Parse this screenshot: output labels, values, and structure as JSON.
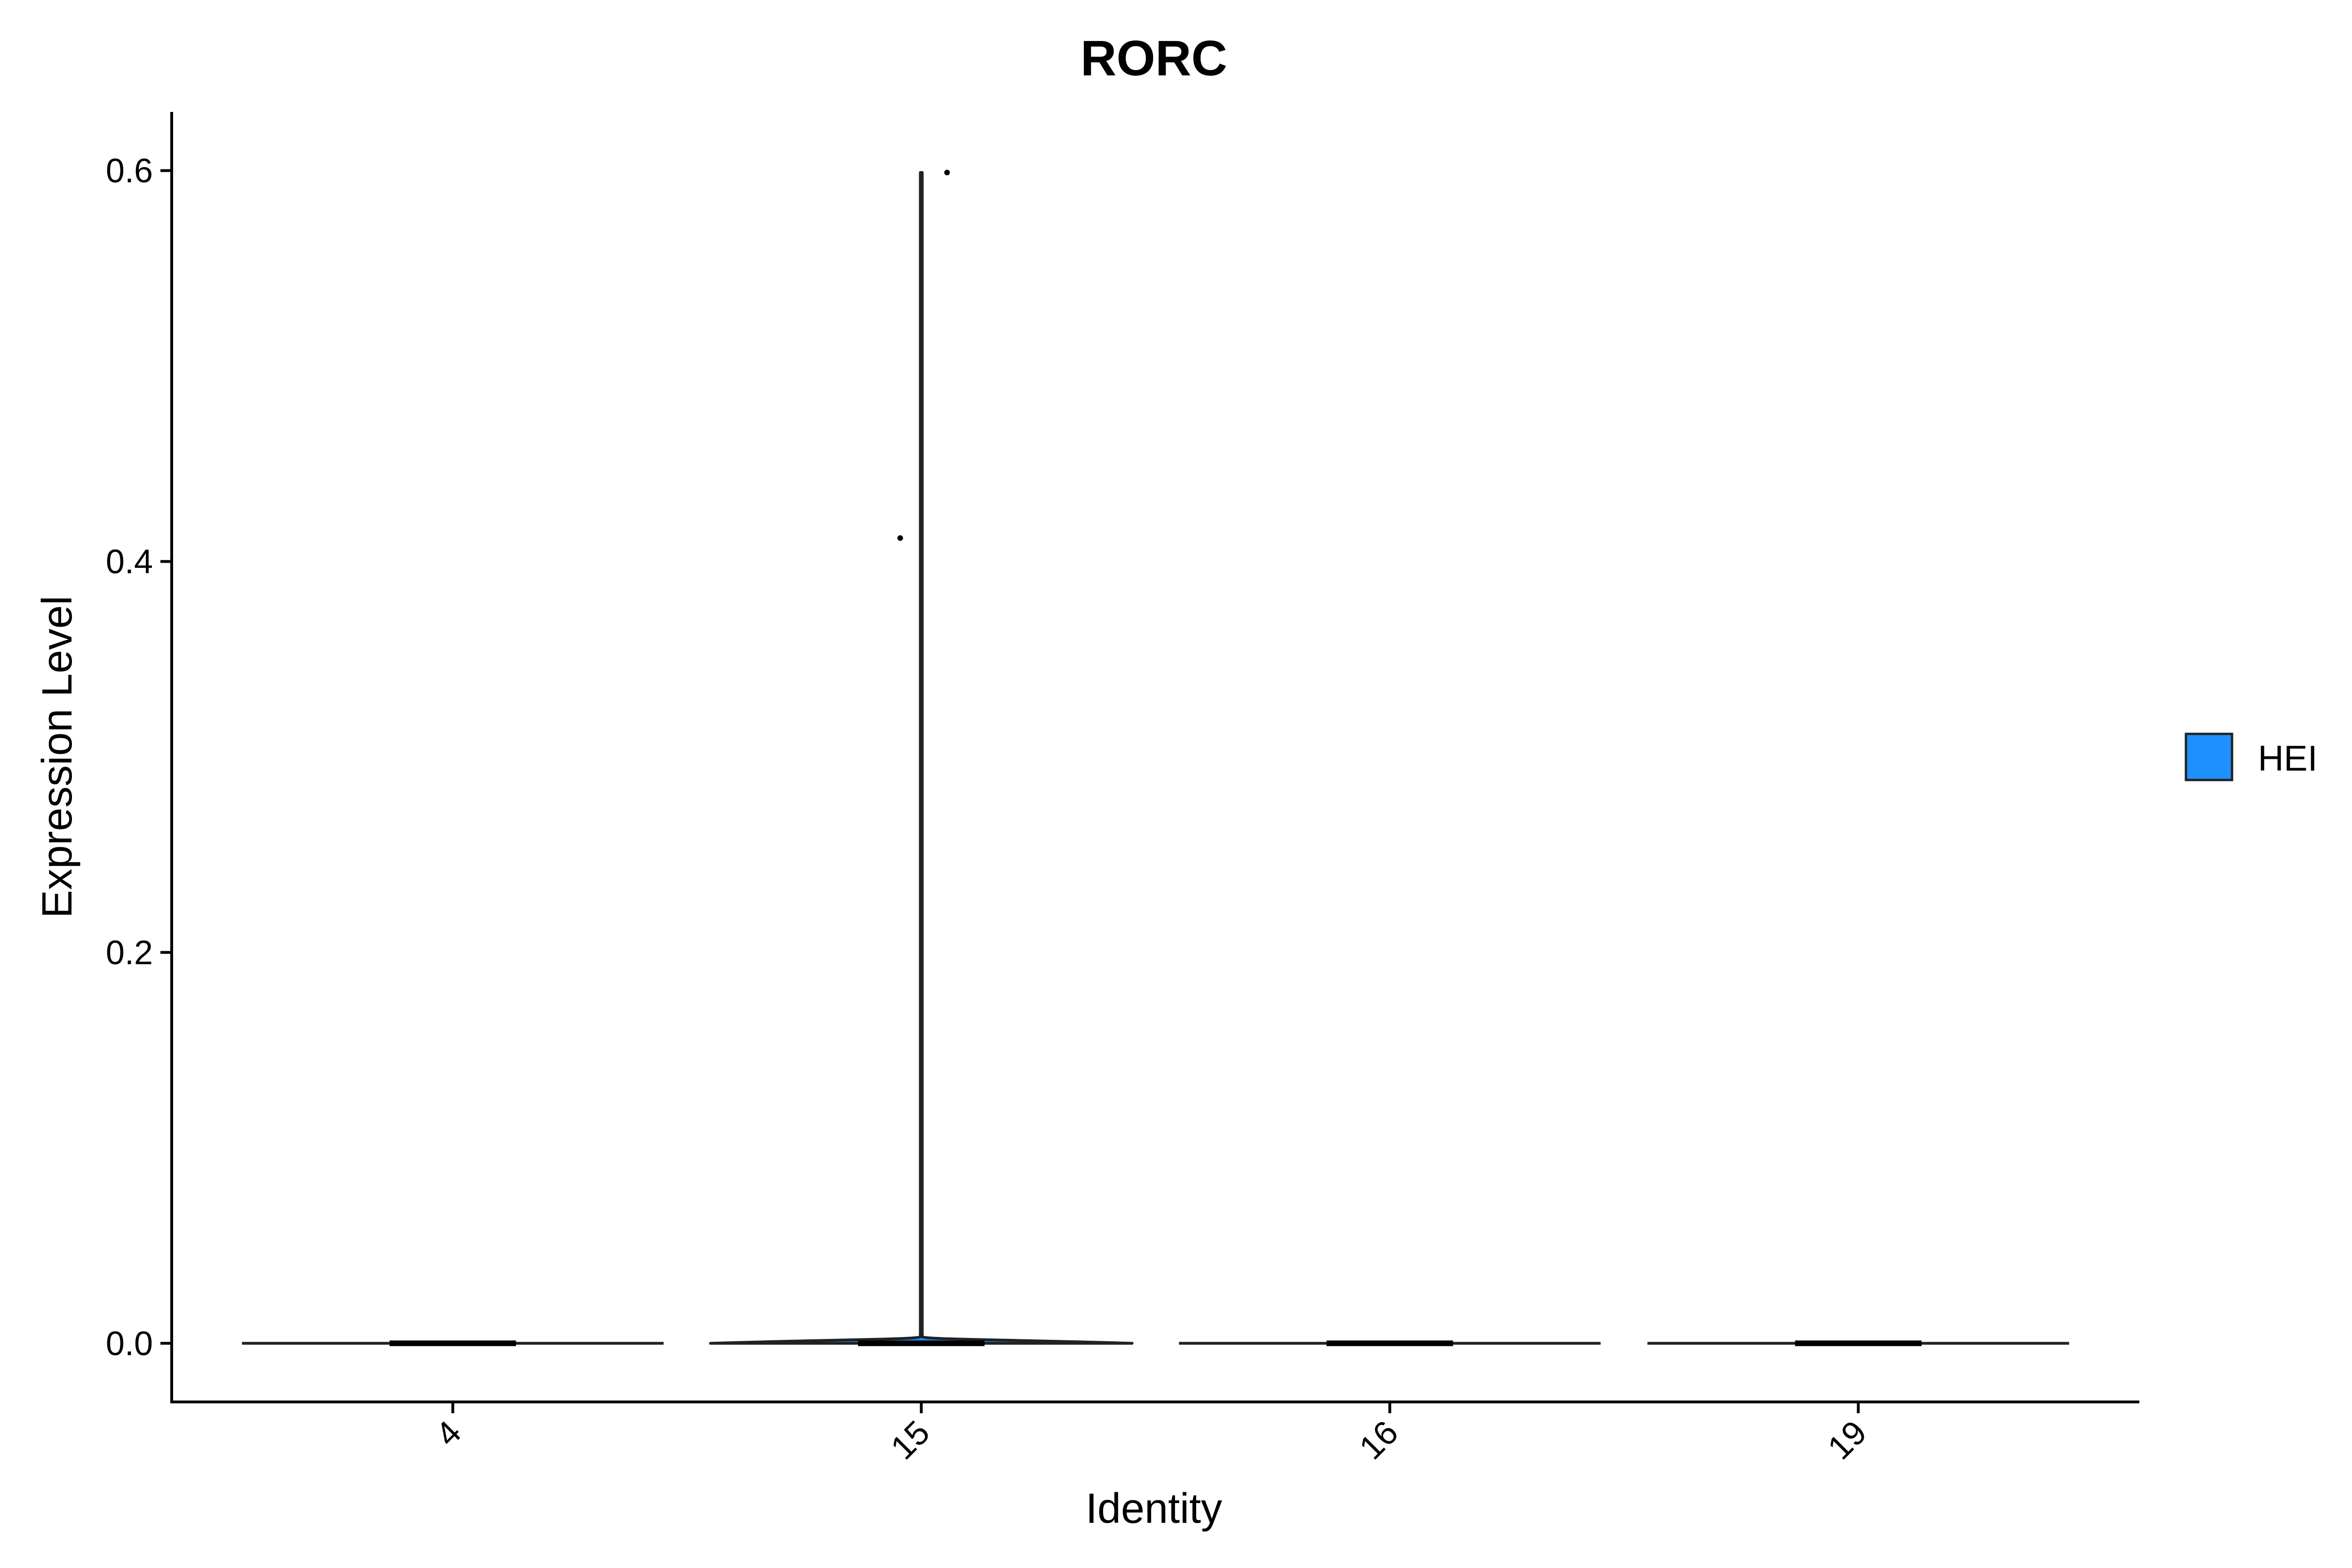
{
  "chart_data": {
    "type": "violin",
    "title": "RORC",
    "xlabel": "Identity",
    "ylabel": "Expression Level",
    "categories": [
      "4",
      "15",
      "16",
      "19"
    ],
    "ylim": [
      -0.03,
      0.63
    ],
    "yticks": [
      0.0,
      0.2,
      0.4,
      0.6
    ],
    "ytick_labels": [
      "0.0",
      "0.2",
      "0.4",
      "0.6"
    ],
    "grid": false,
    "legend": {
      "position": "right",
      "entries": [
        {
          "label": "HEI",
          "color": "#1E90FF"
        }
      ]
    },
    "series": [
      {
        "name": "HEI",
        "color": "#1E90FF",
        "groups": [
          {
            "category": "4",
            "min": 0.0,
            "max": 0.0,
            "points": []
          },
          {
            "category": "15",
            "min": 0.0,
            "max": 0.599,
            "points": [
              {
                "jitter": -0.045,
                "y": 0.412
              },
              {
                "jitter": 0.055,
                "y": 0.599
              }
            ]
          },
          {
            "category": "16",
            "min": 0.0,
            "max": 0.0,
            "points": []
          },
          {
            "category": "19",
            "min": 0.0,
            "max": 0.0,
            "points": []
          }
        ]
      }
    ]
  }
}
